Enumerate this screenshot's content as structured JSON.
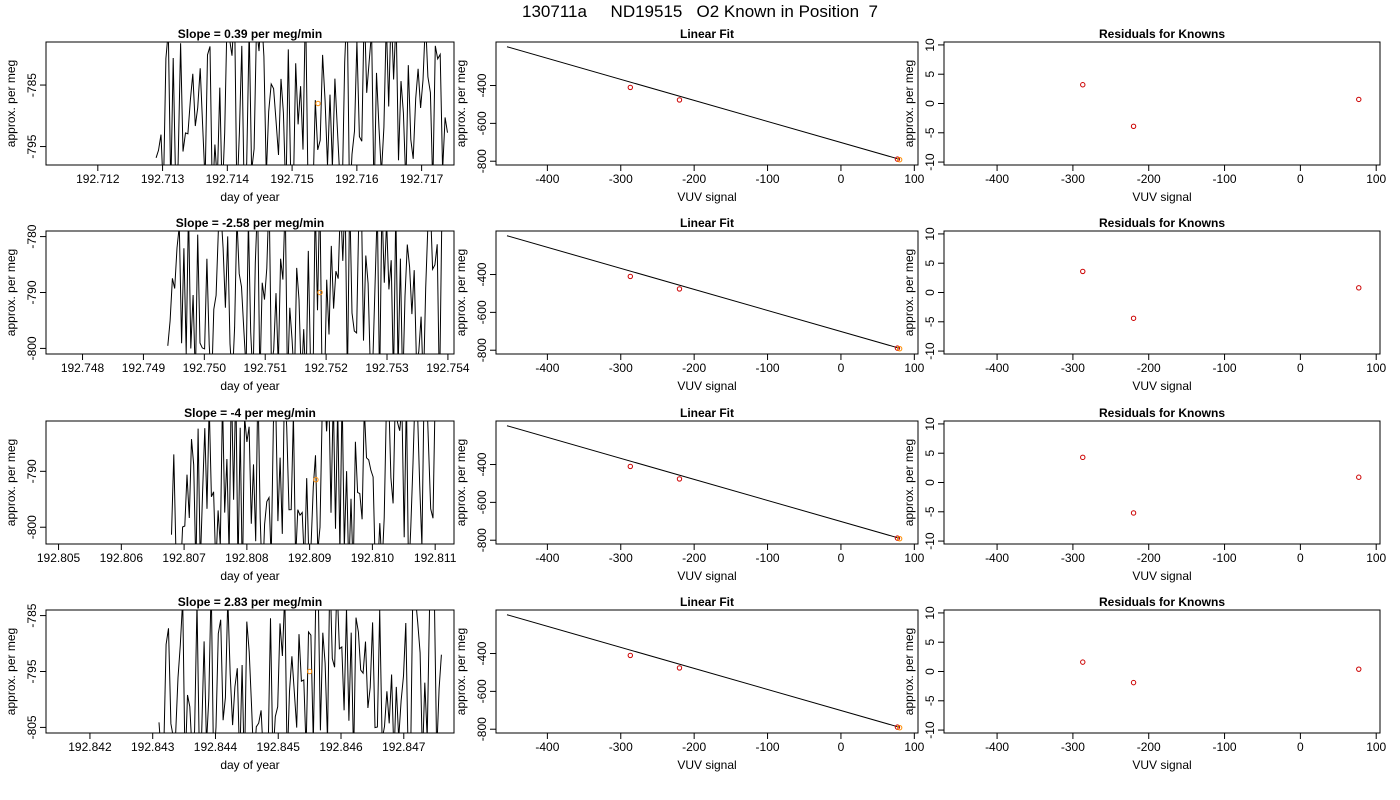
{
  "page": {
    "title": "130711a     ND19515   O2 Known in Position  7"
  },
  "colors": {
    "trace": "#000000",
    "marker_orange": "#ff8c00",
    "marker_red": "#cc0000",
    "fit_line": "#000000"
  },
  "chart_data": [
    {
      "type": "line",
      "title": "Slope =  0.39  per meg/min",
      "xlabel": "day of year",
      "ylabel": "approx. per meg",
      "xlim": [
        192.7112,
        192.7175
      ],
      "ylim": [
        -798,
        -778
      ],
      "xticks": [
        "192.712",
        "192.713",
        "192.714",
        "192.715",
        "192.716",
        "192.717"
      ],
      "yticks": [
        "-785",
        "-795"
      ],
      "ytick_values": [
        -785,
        -795
      ],
      "trace_start": 192.7129,
      "trace_end": 192.7174,
      "trace_seed": 11,
      "point": {
        "x": 192.7154,
        "y": -788
      }
    },
    {
      "type": "scatter",
      "title": "Linear Fit",
      "xlabel": "VUV signal",
      "ylabel": "approx. per meg",
      "xlim": [
        -470,
        105
      ],
      "ylim": [
        -820,
        -170
      ],
      "xticks": [
        "-400",
        "-300",
        "-200",
        "-100",
        "0",
        "100"
      ],
      "xtick_values": [
        -400,
        -300,
        -200,
        -100,
        0,
        100
      ],
      "yticks": [
        "-400",
        "-600",
        "-800"
      ],
      "ytick_values": [
        -400,
        -600,
        -800
      ],
      "fit_line": [
        [
          -455,
          -195
        ],
        [
          80,
          -790
        ]
      ],
      "points": [
        [
          -287,
          -410
        ],
        [
          -220,
          -476
        ],
        [
          77,
          -789
        ],
        [
          80,
          -792
        ]
      ]
    },
    {
      "type": "scatter",
      "title": "Residuals for Knowns",
      "xlabel": "VUV signal",
      "ylabel": "approx. per meg",
      "xlim": [
        -470,
        105
      ],
      "ylim": [
        -10.5,
        10.5
      ],
      "xticks": [
        "-400",
        "-300",
        "-200",
        "-100",
        "0",
        "100"
      ],
      "xtick_values": [
        -400,
        -300,
        -200,
        -100,
        0,
        100
      ],
      "yticks": [
        "10",
        "5",
        "0",
        "-5",
        "-10"
      ],
      "ytick_values": [
        10,
        5,
        0,
        -5,
        -10
      ],
      "points": [
        [
          -287,
          3.2
        ],
        [
          -220,
          -3.9
        ],
        [
          77,
          0.7
        ]
      ]
    },
    {
      "type": "line",
      "title": "Slope =  -2.58  per meg/min",
      "xlabel": "day of year",
      "ylabel": "approx. per meg",
      "xlim": [
        192.7474,
        192.7541
      ],
      "ylim": [
        -801,
        -779
      ],
      "xticks": [
        "192.748",
        "192.749",
        "192.750",
        "192.751",
        "192.752",
        "192.753",
        "192.754"
      ],
      "yticks": [
        "-780",
        "-790",
        "-800"
      ],
      "ytick_values": [
        -780,
        -790,
        -800
      ],
      "trace_start": 192.7494,
      "trace_end": 192.7539,
      "trace_seed": 23,
      "point": {
        "x": 192.7519,
        "y": -790
      }
    },
    {
      "type": "scatter",
      "title": "Linear Fit",
      "xlabel": "VUV signal",
      "ylabel": "approx. per meg",
      "xlim": [
        -470,
        105
      ],
      "ylim": [
        -820,
        -170
      ],
      "xticks": [
        "-400",
        "-300",
        "-200",
        "-100",
        "0",
        "100"
      ],
      "xtick_values": [
        -400,
        -300,
        -200,
        -100,
        0,
        100
      ],
      "yticks": [
        "-400",
        "-600",
        "-800"
      ],
      "ytick_values": [
        -400,
        -600,
        -800
      ],
      "fit_line": [
        [
          -455,
          -195
        ],
        [
          80,
          -790
        ]
      ],
      "points": [
        [
          -287,
          -410
        ],
        [
          -220,
          -476
        ],
        [
          77,
          -789
        ],
        [
          80,
          -792
        ]
      ]
    },
    {
      "type": "scatter",
      "title": "Residuals for Knowns",
      "xlabel": "VUV signal",
      "ylabel": "approx. per meg",
      "xlim": [
        -470,
        105
      ],
      "ylim": [
        -10.5,
        10.5
      ],
      "xticks": [
        "-400",
        "-300",
        "-200",
        "-100",
        "0",
        "100"
      ],
      "xtick_values": [
        -400,
        -300,
        -200,
        -100,
        0,
        100
      ],
      "yticks": [
        "10",
        "5",
        "0",
        "-5",
        "-10"
      ],
      "ytick_values": [
        10,
        5,
        0,
        -5,
        -10
      ],
      "points": [
        [
          -287,
          3.6
        ],
        [
          -220,
          -4.4
        ],
        [
          77,
          0.8
        ]
      ]
    },
    {
      "type": "line",
      "title": "Slope =  -4  per meg/min",
      "xlabel": "day of year",
      "ylabel": "approx. per meg",
      "xlim": [
        192.8048,
        192.8113
      ],
      "ylim": [
        -803,
        -781
      ],
      "xticks": [
        "192.805",
        "192.806",
        "192.807",
        "192.808",
        "192.809",
        "192.810",
        "192.811"
      ],
      "yticks": [
        "-790",
        "-800"
      ],
      "ytick_values": [
        -790,
        -800
      ],
      "trace_start": 192.8068,
      "trace_end": 192.811,
      "trace_seed": 37,
      "point": {
        "x": 192.8091,
        "y": -791.5
      }
    },
    {
      "type": "scatter",
      "title": "Linear Fit",
      "xlabel": "VUV signal",
      "ylabel": "approx. per meg",
      "xlim": [
        -470,
        105
      ],
      "ylim": [
        -820,
        -170
      ],
      "xticks": [
        "-400",
        "-300",
        "-200",
        "-100",
        "0",
        "100"
      ],
      "xtick_values": [
        -400,
        -300,
        -200,
        -100,
        0,
        100
      ],
      "yticks": [
        "-400",
        "-600",
        "-800"
      ],
      "ytick_values": [
        -400,
        -600,
        -800
      ],
      "fit_line": [
        [
          -455,
          -195
        ],
        [
          80,
          -790
        ]
      ],
      "points": [
        [
          -287,
          -410
        ],
        [
          -220,
          -476
        ],
        [
          77,
          -789
        ],
        [
          80,
          -792
        ]
      ]
    },
    {
      "type": "scatter",
      "title": "Residuals for Knowns",
      "xlabel": "VUV signal",
      "ylabel": "approx. per meg",
      "xlim": [
        -470,
        105
      ],
      "ylim": [
        -10.5,
        10.5
      ],
      "xticks": [
        "-400",
        "-300",
        "-200",
        "-100",
        "0",
        "100"
      ],
      "xtick_values": [
        -400,
        -300,
        -200,
        -100,
        0,
        100
      ],
      "yticks": [
        "10",
        "5",
        "0",
        "-5",
        "-10"
      ],
      "ytick_values": [
        10,
        5,
        0,
        -5,
        -10
      ],
      "points": [
        [
          -287,
          4.3
        ],
        [
          -220,
          -5.2
        ],
        [
          77,
          0.9
        ]
      ]
    },
    {
      "type": "line",
      "title": "Slope =  2.83  per meg/min",
      "xlabel": "day of year",
      "ylabel": "approx. per meg",
      "xlim": [
        192.8413,
        192.8478
      ],
      "ylim": [
        -806,
        -784
      ],
      "xticks": [
        "192.842",
        "192.843",
        "192.844",
        "192.845",
        "192.846",
        "192.847"
      ],
      "yticks": [
        "-785",
        "-795",
        "-805"
      ],
      "ytick_values": [
        -785,
        -795,
        -805
      ],
      "trace_start": 192.8431,
      "trace_end": 192.8476,
      "trace_seed": 53,
      "point": {
        "x": 192.8455,
        "y": -795
      }
    },
    {
      "type": "scatter",
      "title": "Linear Fit",
      "xlabel": "VUV signal",
      "ylabel": "approx. per meg",
      "xlim": [
        -470,
        105
      ],
      "ylim": [
        -820,
        -170
      ],
      "xticks": [
        "-400",
        "-300",
        "-200",
        "-100",
        "0",
        "100"
      ],
      "xtick_values": [
        -400,
        -300,
        -200,
        -100,
        0,
        100
      ],
      "yticks": [
        "-400",
        "-600",
        "-800"
      ],
      "ytick_values": [
        -400,
        -600,
        -800
      ],
      "fit_line": [
        [
          -455,
          -195
        ],
        [
          80,
          -790
        ]
      ],
      "points": [
        [
          -287,
          -410
        ],
        [
          -220,
          -476
        ],
        [
          77,
          -789
        ],
        [
          80,
          -792
        ]
      ]
    },
    {
      "type": "scatter",
      "title": "Residuals for Knowns",
      "xlabel": "VUV signal",
      "ylabel": "approx. per meg",
      "xlim": [
        -470,
        105
      ],
      "ylim": [
        -10.5,
        10.5
      ],
      "xticks": [
        "-400",
        "-300",
        "-200",
        "-100",
        "0",
        "100"
      ],
      "xtick_values": [
        -400,
        -300,
        -200,
        -100,
        0,
        100
      ],
      "yticks": [
        "10",
        "5",
        "0",
        "-5",
        "-10"
      ],
      "ytick_values": [
        10,
        5,
        0,
        -5,
        -10
      ],
      "points": [
        [
          -287,
          1.6
        ],
        [
          -220,
          -1.9
        ],
        [
          77,
          0.4
        ]
      ]
    }
  ]
}
